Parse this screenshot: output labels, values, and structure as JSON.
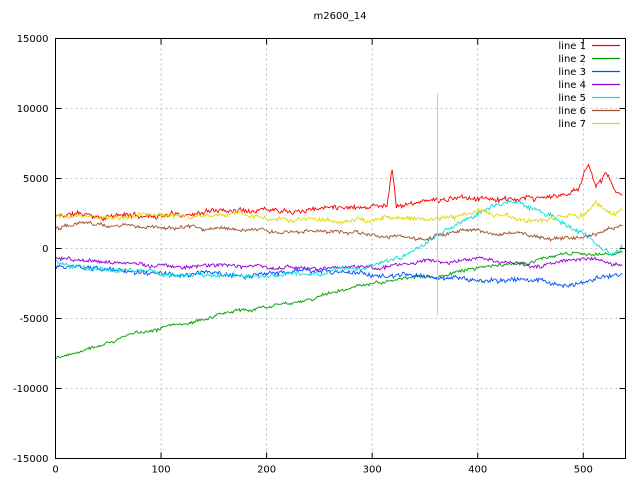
{
  "title": "m2600_14",
  "chart_data": {
    "type": "line",
    "title": "m2600_14",
    "xlabel": "",
    "ylabel": "",
    "xlim": [
      0,
      540
    ],
    "ylim": [
      -15000,
      15000
    ],
    "xticks": [
      0,
      100,
      200,
      300,
      400,
      500
    ],
    "yticks": [
      -15000,
      -10000,
      -5000,
      0,
      5000,
      10000,
      15000
    ],
    "grid": true,
    "grid_color": "#b0b0b0",
    "axis_color": "#000000",
    "background": "#ffffff",
    "legend_position": "top-right",
    "series": [
      {
        "name": "line 1",
        "color": "#ff0000",
        "noise": 240,
        "seed": 11,
        "anchors": [
          [
            0,
            2300
          ],
          [
            20,
            2500
          ],
          [
            40,
            2300
          ],
          [
            60,
            2400
          ],
          [
            80,
            2300
          ],
          [
            100,
            2400
          ],
          [
            130,
            2600
          ],
          [
            160,
            2800
          ],
          [
            190,
            3000
          ],
          [
            220,
            3000
          ],
          [
            250,
            3050
          ],
          [
            280,
            3150
          ],
          [
            314,
            3200
          ],
          [
            319,
            5900
          ],
          [
            323,
            3200
          ],
          [
            350,
            3400
          ],
          [
            380,
            3500
          ],
          [
            410,
            3600
          ],
          [
            440,
            3300
          ],
          [
            465,
            3500
          ],
          [
            480,
            3700
          ],
          [
            495,
            4100
          ],
          [
            505,
            6200
          ],
          [
            512,
            4400
          ],
          [
            522,
            5500
          ],
          [
            530,
            4100
          ],
          [
            537,
            3800
          ]
        ]
      },
      {
        "name": "line 2",
        "color": "#00a000",
        "noise": 160,
        "seed": 22,
        "anchors": [
          [
            0,
            -7800
          ],
          [
            30,
            -7000
          ],
          [
            60,
            -6400
          ],
          [
            100,
            -5600
          ],
          [
            140,
            -5000
          ],
          [
            180,
            -4400
          ],
          [
            220,
            -3800
          ],
          [
            260,
            -3200
          ],
          [
            300,
            -2600
          ],
          [
            340,
            -2100
          ],
          [
            380,
            -1700
          ],
          [
            420,
            -1300
          ],
          [
            460,
            -800
          ],
          [
            500,
            -400
          ],
          [
            537,
            -250
          ]
        ]
      },
      {
        "name": "line 3",
        "color": "#0050ff",
        "noise": 220,
        "seed": 33,
        "anchors": [
          [
            0,
            -1300
          ],
          [
            40,
            -1500
          ],
          [
            80,
            -1700
          ],
          [
            120,
            -1900
          ],
          [
            160,
            -1900
          ],
          [
            200,
            -2000
          ],
          [
            240,
            -1800
          ],
          [
            280,
            -1700
          ],
          [
            320,
            -1900
          ],
          [
            360,
            -2200
          ],
          [
            400,
            -2400
          ],
          [
            430,
            -2200
          ],
          [
            460,
            -2300
          ],
          [
            490,
            -2600
          ],
          [
            515,
            -2300
          ],
          [
            537,
            -1950
          ]
        ]
      },
      {
        "name": "line 4",
        "color": "#9400d3",
        "noise": 180,
        "seed": 44,
        "anchors": [
          [
            0,
            -700
          ],
          [
            40,
            -1000
          ],
          [
            80,
            -1200
          ],
          [
            120,
            -1300
          ],
          [
            160,
            -1200
          ],
          [
            200,
            -1250
          ],
          [
            240,
            -1350
          ],
          [
            280,
            -1300
          ],
          [
            320,
            -1150
          ],
          [
            360,
            -950
          ],
          [
            390,
            -750
          ],
          [
            420,
            -900
          ],
          [
            450,
            -1250
          ],
          [
            480,
            -1000
          ],
          [
            510,
            -850
          ],
          [
            537,
            -1300
          ]
        ]
      },
      {
        "name": "line 5",
        "color": "#00e0e0",
        "noise": 220,
        "seed": 55,
        "anchors": [
          [
            0,
            -900
          ],
          [
            30,
            -1300
          ],
          [
            60,
            -1500
          ],
          [
            100,
            -1700
          ],
          [
            140,
            -1850
          ],
          [
            180,
            -1950
          ],
          [
            220,
            -1900
          ],
          [
            260,
            -1700
          ],
          [
            295,
            -1400
          ],
          [
            320,
            -900
          ],
          [
            345,
            -100
          ],
          [
            370,
            1200
          ],
          [
            395,
            2400
          ],
          [
            415,
            3100
          ],
          [
            430,
            3400
          ],
          [
            445,
            3000
          ],
          [
            460,
            2500
          ],
          [
            475,
            2100
          ],
          [
            490,
            1400
          ],
          [
            505,
            600
          ],
          [
            518,
            0
          ],
          [
            528,
            -200
          ],
          [
            537,
            300
          ]
        ]
      },
      {
        "name": "line 6",
        "color": "#a0522d",
        "noise": 180,
        "seed": 66,
        "anchors": [
          [
            0,
            1500
          ],
          [
            25,
            1950
          ],
          [
            50,
            1850
          ],
          [
            80,
            1700
          ],
          [
            110,
            1650
          ],
          [
            140,
            1550
          ],
          [
            170,
            1500
          ],
          [
            200,
            1450
          ],
          [
            230,
            1250
          ],
          [
            260,
            1150
          ],
          [
            290,
            1050
          ],
          [
            320,
            900
          ],
          [
            350,
            850
          ],
          [
            375,
            1200
          ],
          [
            395,
            1450
          ],
          [
            415,
            1050
          ],
          [
            440,
            900
          ],
          [
            465,
            800
          ],
          [
            490,
            700
          ],
          [
            510,
            1000
          ],
          [
            525,
            1300
          ],
          [
            537,
            1500
          ]
        ]
      },
      {
        "name": "line 7",
        "color": "#dcdc00",
        "noise": 220,
        "seed": 77,
        "anchors": [
          [
            0,
            2300
          ],
          [
            30,
            2450
          ],
          [
            60,
            2350
          ],
          [
            90,
            2400
          ],
          [
            120,
            2300
          ],
          [
            150,
            2300
          ],
          [
            180,
            2250
          ],
          [
            210,
            2150
          ],
          [
            240,
            2050
          ],
          [
            270,
            1950
          ],
          [
            300,
            1850
          ],
          [
            325,
            2050
          ],
          [
            350,
            2150
          ],
          [
            375,
            2250
          ],
          [
            400,
            2350
          ],
          [
            425,
            2200
          ],
          [
            450,
            2050
          ],
          [
            475,
            2000
          ],
          [
            500,
            2150
          ],
          [
            512,
            3300
          ],
          [
            520,
            2800
          ],
          [
            528,
            2300
          ],
          [
            537,
            2650
          ]
        ],
        "vspikes": [
          {
            "x": 362,
            "y1": -4800,
            "y2": 11100
          }
        ]
      }
    ]
  }
}
